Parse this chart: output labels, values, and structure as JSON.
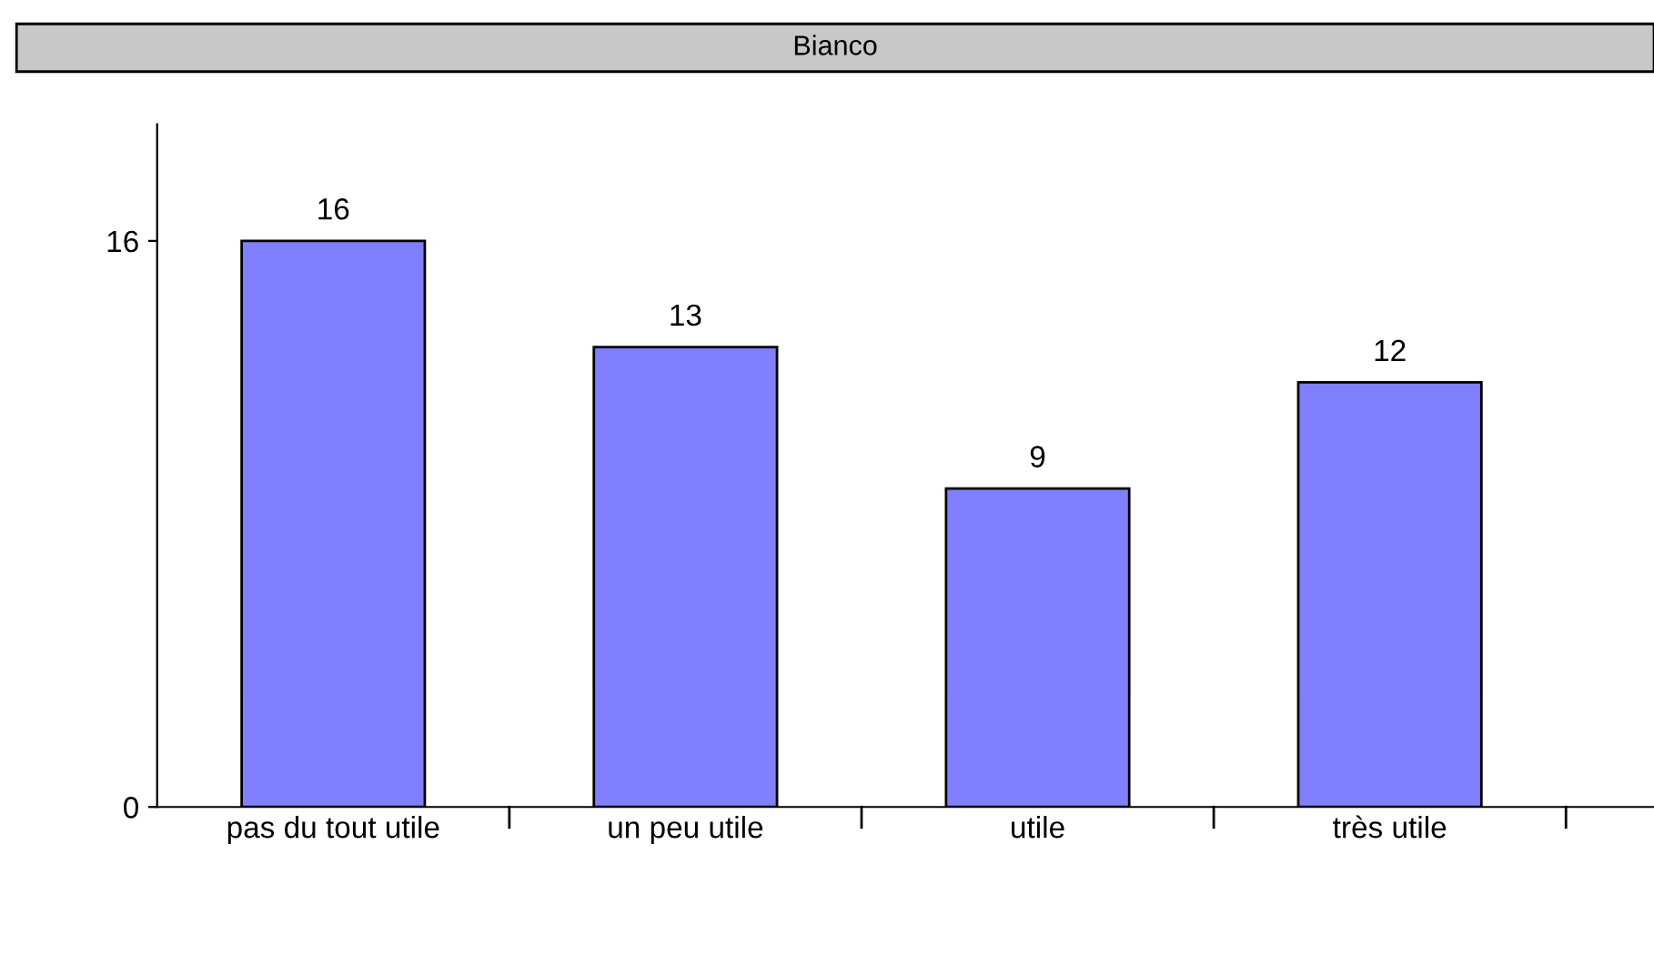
{
  "chart_data": {
    "type": "bar",
    "title": "Bianco",
    "categories": [
      "pas du tout utile",
      "un peu utile",
      "utile",
      "très utile"
    ],
    "values": [
      16,
      13,
      9,
      12
    ],
    "color": "#8080ff",
    "ylim": [
      0,
      19.3
    ],
    "yticks": [
      0,
      16
    ],
    "grid": false,
    "data_labels": true
  }
}
